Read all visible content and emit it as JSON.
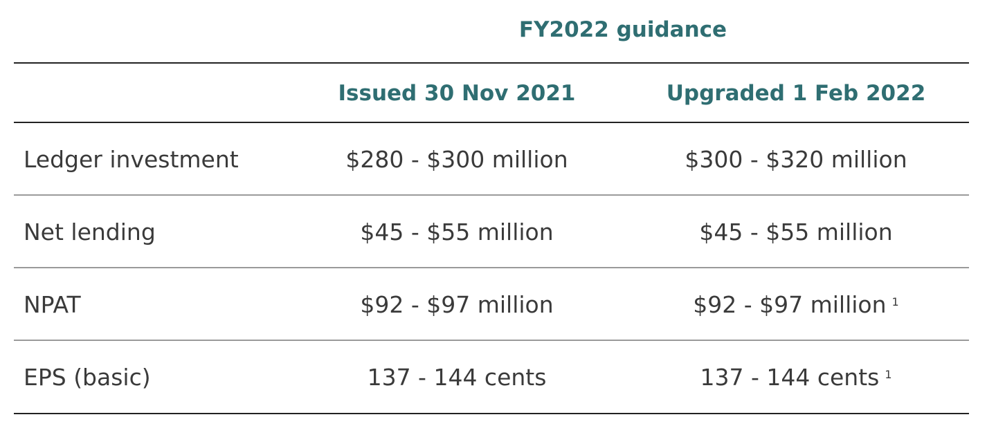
{
  "table": {
    "group_header": "FY2022 guidance",
    "columns": {
      "label": "",
      "issued": "Issued 30 Nov 2021",
      "upgraded": "Upgraded 1 Feb 2022"
    },
    "rows": [
      {
        "label": "Ledger investment",
        "issued": "$280 - $300 million",
        "upgraded": "$300 - $320 million",
        "upgraded_footnote": ""
      },
      {
        "label": "Net lending",
        "issued": "$45 - $55 million",
        "upgraded": "$45 - $55 million",
        "upgraded_footnote": ""
      },
      {
        "label": "NPAT",
        "issued": "$92 - $97 million",
        "upgraded": "$92 - $97 million",
        "upgraded_footnote": "1"
      },
      {
        "label": "EPS (basic)",
        "issued": "137 - 144 cents",
        "upgraded": "137 - 144 cents",
        "upgraded_footnote": "1"
      }
    ]
  }
}
